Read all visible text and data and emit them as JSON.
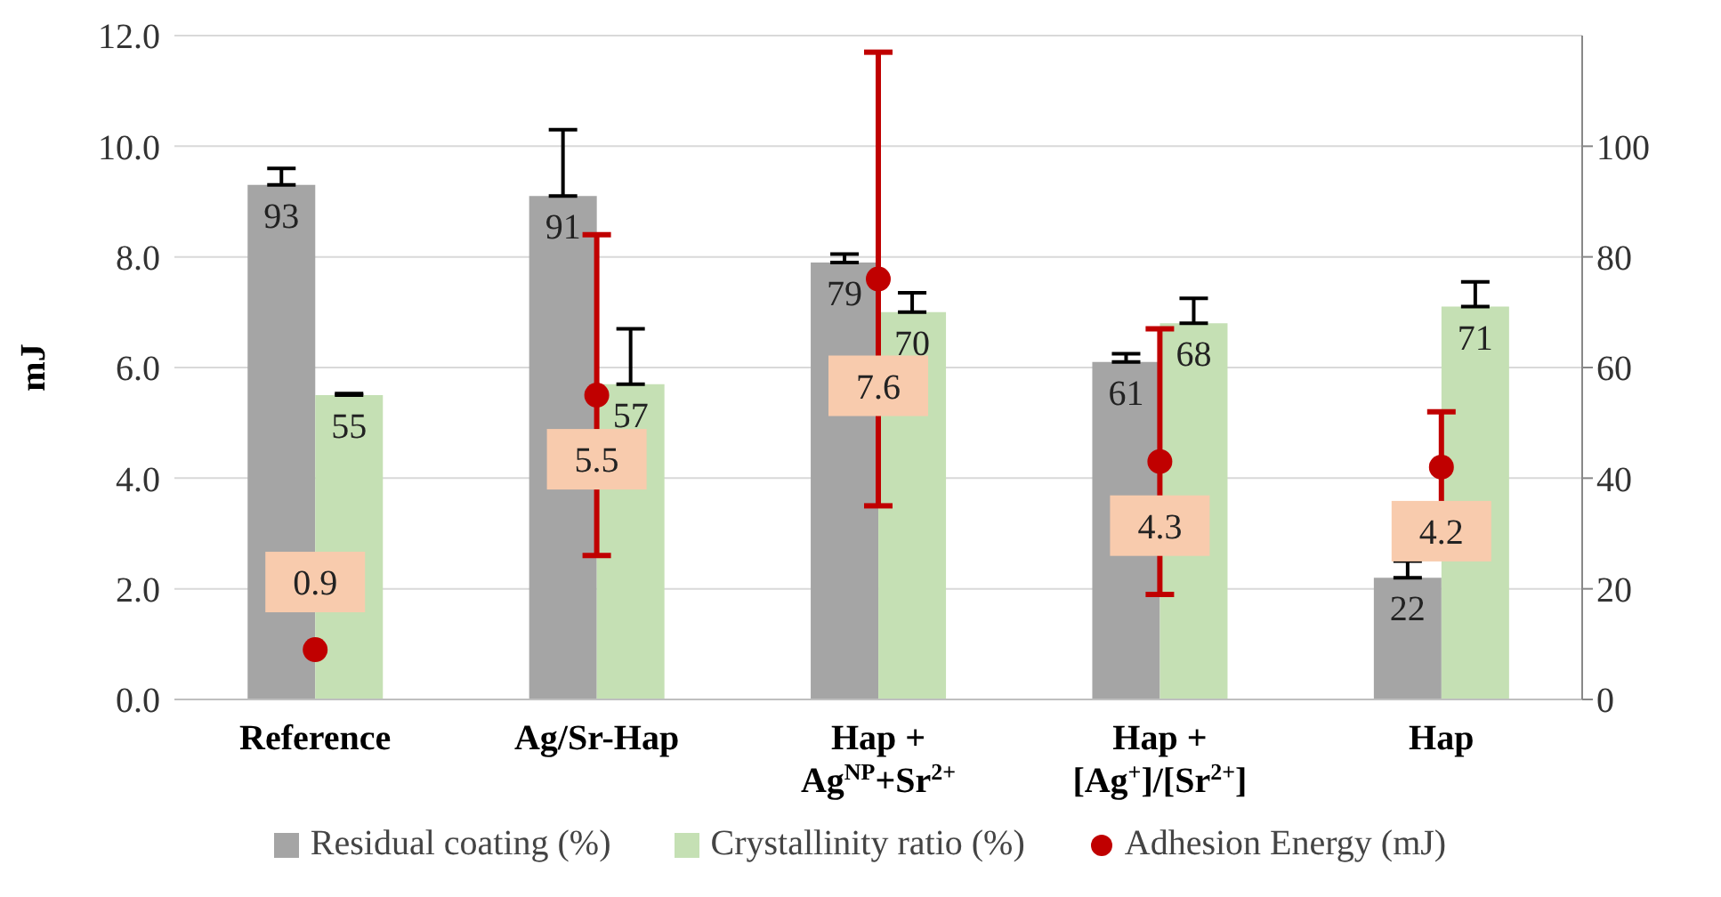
{
  "chart_data": {
    "type": "bar",
    "ylabel": "mJ",
    "categories": [
      "Reference",
      "Ag/Sr-Hap",
      "Hap +\nAg$^{NP}$+Sr$^{2+}$",
      "Hap +\n[Ag$^{+}$]/[Sr$^{2+}$]",
      "Hap"
    ],
    "series": [
      {
        "name": "Residual coating (%)",
        "axis": "y2",
        "color": "#a5a5a5",
        "values": [
          93,
          91,
          79,
          61,
          22
        ],
        "errors": [
          3,
          12,
          1.5,
          1.5,
          3
        ]
      },
      {
        "name": "Crystallinity ratio (%)",
        "axis": "y2",
        "color": "#c5e0b4",
        "values": [
          55,
          57,
          70,
          68,
          71
        ],
        "errors": [
          0.3,
          10,
          3.5,
          4.5,
          4.5
        ]
      },
      {
        "name": "Adhesion Energy (mJ)",
        "type": "scatter",
        "axis": "y",
        "color": "#c00000",
        "marker": "circle",
        "values": [
          0.9,
          5.5,
          7.6,
          4.3,
          4.2
        ],
        "errors": [
          null,
          2.9,
          4.1,
          2.4,
          1
        ]
      }
    ],
    "ylim": [
      0,
      12
    ],
    "yticks": [
      {
        "value": 0,
        "label": "0.0"
      },
      {
        "value": 2,
        "label": "2.0"
      },
      {
        "value": 4,
        "label": "4.0"
      },
      {
        "value": 6,
        "label": "6.0"
      },
      {
        "value": 8,
        "label": "8.0"
      },
      {
        "value": 10,
        "label": "10.0"
      },
      {
        "value": 12,
        "label": "12.0"
      }
    ],
    "y2lim": [
      0,
      120
    ],
    "y2ticks": [
      0,
      20,
      40,
      60,
      80,
      100
    ],
    "grid": "y",
    "legend": "bottom",
    "data_labels": true
  }
}
